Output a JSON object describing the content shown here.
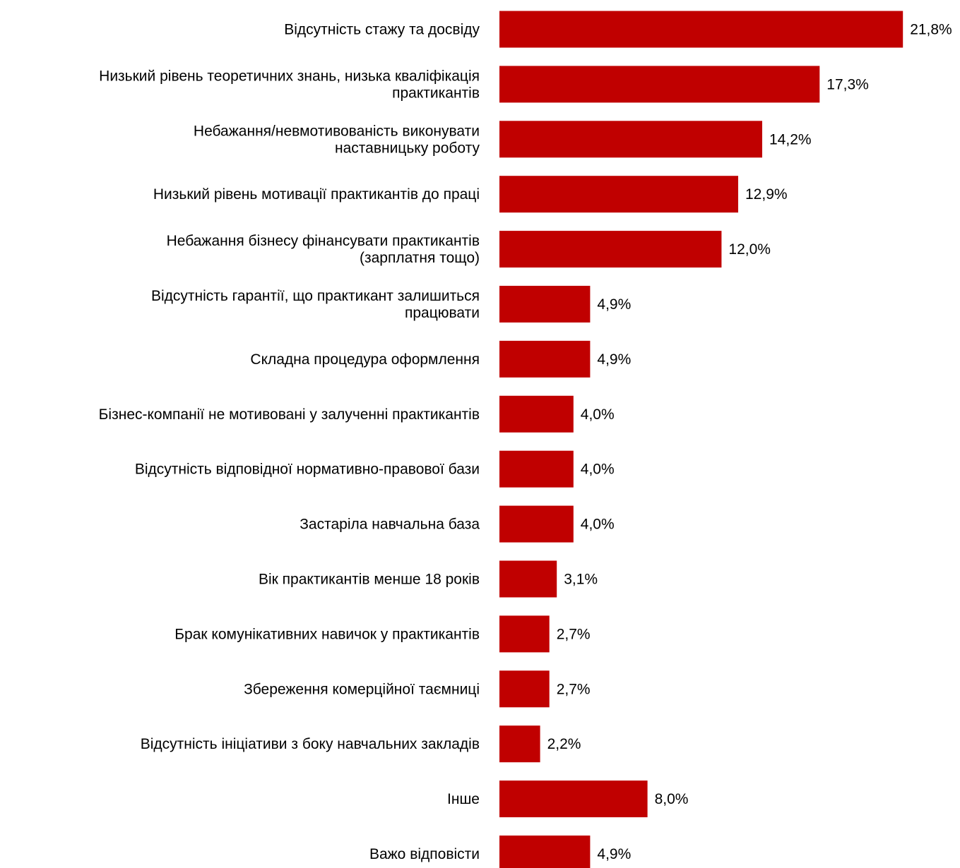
{
  "chart_data": {
    "type": "bar",
    "orientation": "horizontal",
    "categories": [
      [
        "Відсутність стажу та досвіду"
      ],
      [
        "Низький рівень теоретичних знань, низька кваліфікація",
        "практикантів"
      ],
      [
        "Небажання/невмотивованість виконувати",
        "наставницьку роботу"
      ],
      [
        "Низький рівень мотивації практикантів до праці"
      ],
      [
        "Небажання бізнесу фінансувати практикантів",
        "(зарплатня тощо)"
      ],
      [
        "Відсутність гарантії, що практикант залишиться",
        "працювати"
      ],
      [
        "Складна процедура оформлення"
      ],
      [
        "Бізнес-компанії не мотивовані у залученні практикантів"
      ],
      [
        "Відсутність відповідної нормативно-правової бази"
      ],
      [
        "Застаріла навчальна база"
      ],
      [
        "Вік практикантів менше 18 років"
      ],
      [
        "Брак комунікативних навичок у практикантів"
      ],
      [
        "Збереження комерційної таємниці"
      ],
      [
        "Відсутність ініціативи з боку навчальних закладів"
      ],
      [
        "Інше"
      ],
      [
        "Важо відповісти"
      ]
    ],
    "values": [
      21.8,
      17.3,
      14.2,
      12.9,
      12.0,
      4.9,
      4.9,
      4.0,
      4.0,
      4.0,
      3.1,
      2.7,
      2.7,
      2.2,
      8.0,
      4.9
    ],
    "value_labels": [
      "21,8%",
      "17,3%",
      "14,2%",
      "12,9%",
      "12,0%",
      "4,9%",
      "4,9%",
      "4,0%",
      "4,0%",
      "4,0%",
      "3,1%",
      "2,7%",
      "2,7%",
      "2,2%",
      "8,0%",
      "4,9%"
    ],
    "bar_color": "#c00000",
    "grid": false,
    "legend": "none"
  }
}
